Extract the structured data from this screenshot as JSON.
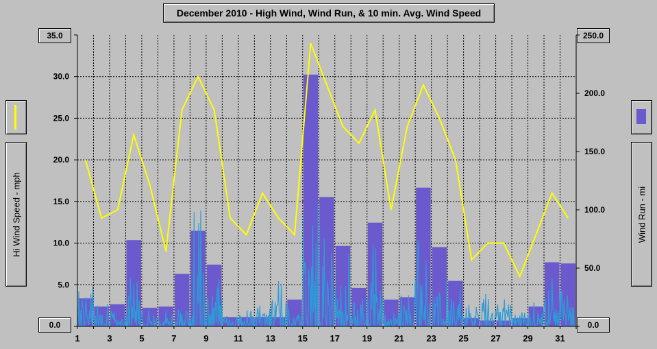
{
  "chart_data": {
    "type": "bar",
    "title": "December 2010 - High Wind, Wind Run, & 10 min. Avg. Wind Speed",
    "x_ticks": [
      "1",
      "3",
      "5",
      "7",
      "9",
      "11",
      "13",
      "15",
      "17",
      "19",
      "21",
      "23",
      "25",
      "27",
      "29",
      "31"
    ],
    "left_axis": {
      "label": "Hi Wind Speed - mph",
      "ticks": [
        "0.0",
        "5.0",
        "10.0",
        "15.0",
        "20.0",
        "25.0",
        "30.0",
        "35.0"
      ],
      "ylim": [
        0,
        35
      ]
    },
    "right_axis": {
      "label": "Wind Run - mi",
      "ticks": [
        "0.0",
        "50.0",
        "100.0",
        "150.0",
        "200.0",
        "250.0"
      ],
      "ylim": [
        0,
        250
      ]
    },
    "grid": true,
    "colors": {
      "high_wind": "#ffff00",
      "wind_run": "#6a5acd",
      "avg_speed": "#2e9bd6",
      "plot_bg": "#c0c0c0"
    },
    "series": [
      {
        "key": "high_wind",
        "type": "line",
        "axis": "left",
        "x": [
          1.5,
          2.5,
          3.5,
          4.5,
          5.5,
          6.5,
          7.5,
          8.5,
          9.5,
          10.5,
          11.5,
          12.5,
          13.5,
          14.5,
          15.5,
          16.5,
          17.5,
          18.5,
          19.5,
          20.5,
          21.5,
          22.5,
          23.5,
          24.5,
          25.5,
          26.5,
          27.5,
          28.5,
          29.5,
          30.5,
          31.5
        ],
        "values": [
          20,
          13,
          14,
          23,
          17,
          9,
          26,
          30,
          26,
          13,
          11,
          16,
          13,
          11,
          34,
          29,
          24,
          22,
          26,
          14,
          24,
          29,
          25,
          20,
          8,
          10,
          10,
          6,
          11,
          16,
          13
        ]
      },
      {
        "key": "wind_run",
        "type": "bar",
        "axis": "right",
        "x": [
          1.5,
          2.5,
          3.5,
          4.5,
          5.5,
          6.5,
          7.5,
          8.5,
          9.5,
          10.5,
          11.5,
          12.5,
          13.5,
          14.5,
          15.5,
          16.5,
          17.5,
          18.5,
          19.5,
          20.5,
          21.5,
          22.5,
          23.5,
          24.5,
          25.5,
          26.5,
          27.5,
          28.5,
          29.5,
          30.5,
          31.5
        ],
        "values": [
          24,
          17,
          19,
          74,
          16,
          17,
          45,
          82,
          53,
          8,
          8,
          8,
          8,
          23,
          216,
          111,
          69,
          33,
          89,
          23,
          25,
          119,
          68,
          39,
          7,
          5,
          5,
          7,
          17,
          55,
          54
        ]
      },
      {
        "key": "avg_speed",
        "type": "line",
        "axis": "left",
        "note_values": "10-minute samples",
        "daily_peak": [
          5,
          3,
          2,
          6,
          2,
          2,
          4,
          14,
          7,
          2,
          2,
          3,
          6,
          3,
          15,
          12,
          9,
          4,
          10,
          2,
          4,
          11,
          8,
          5,
          3,
          4,
          4,
          2,
          3,
          6,
          5
        ]
      }
    ]
  }
}
